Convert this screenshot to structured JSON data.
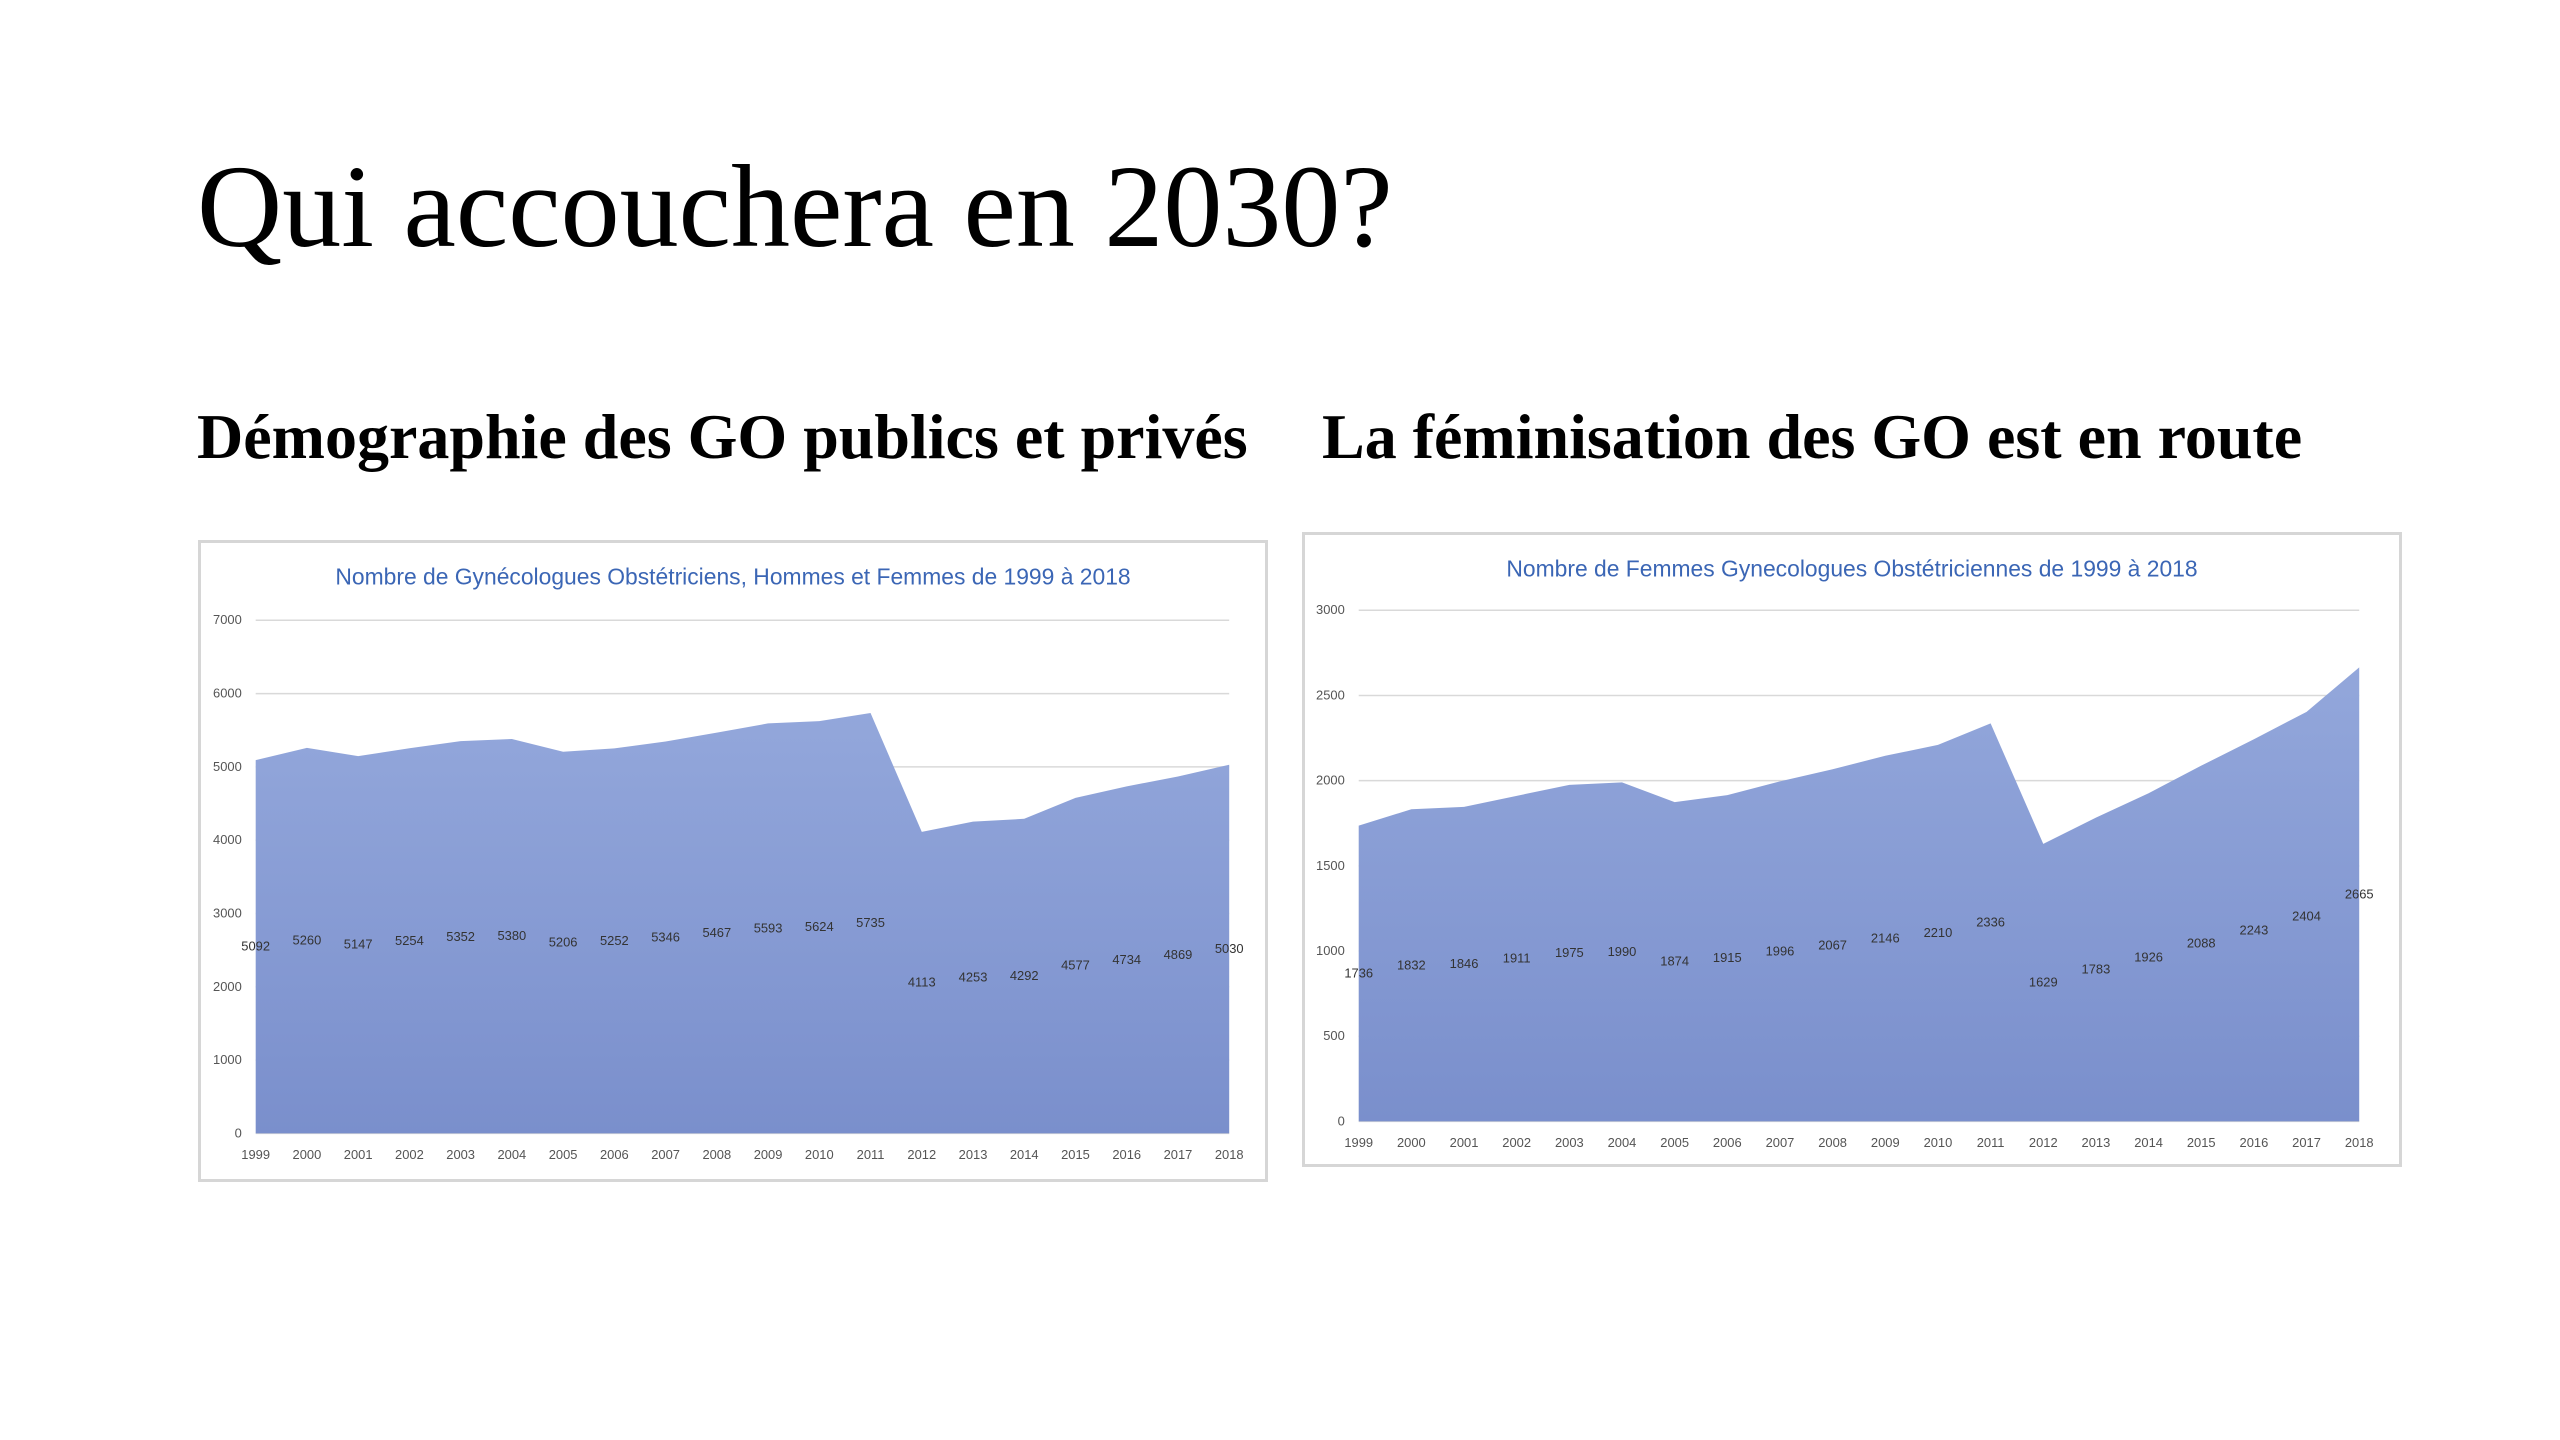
{
  "slide": {
    "title": "Qui accouchera en 2030?",
    "left_heading": "Démographie des GO publics et privés",
    "right_heading": "La féminisation des GO est en route"
  },
  "colors": {
    "area_top": "#93a7db",
    "area_bottom": "#7a8fcc",
    "chart_title": "#3b66b5",
    "gridline": "#d9d9d9",
    "frame": "#d6d6d6"
  },
  "chart_data": [
    {
      "type": "area",
      "title": "Nombre de Gynécologues Obstétriciens, Hommes et Femmes de 1999 à 2018",
      "xlabel": "",
      "ylabel": "",
      "categories": [
        "1999",
        "2000",
        "2001",
        "2002",
        "2003",
        "2004",
        "2005",
        "2006",
        "2007",
        "2008",
        "2009",
        "2010",
        "2011",
        "2012",
        "2013",
        "2014",
        "2015",
        "2016",
        "2017",
        "2018"
      ],
      "series": [
        {
          "values": [
            5092,
            5260,
            5147,
            5254,
            5352,
            5380,
            5206,
            5252,
            5346,
            5467,
            5593,
            5624,
            5735,
            4113,
            4253,
            4292,
            4577,
            4734,
            4869,
            5030
          ]
        }
      ],
      "data_labels": [
        "5092",
        "5260",
        "5147",
        "5254",
        "5352",
        "5380",
        "5206",
        "5252",
        "5346",
        "5467",
        "5593",
        "5624",
        "5735",
        "4113",
        "4253",
        "4292",
        "4577",
        "4734",
        "4869",
        "5030"
      ],
      "ylim": [
        0,
        7000
      ],
      "yticks": [
        0,
        1000,
        2000,
        3000,
        4000,
        5000,
        6000,
        7000
      ],
      "ytick_labels": [
        "0",
        "1000",
        "2000",
        "3000",
        "4000",
        "5000",
        "6000",
        "7000"
      ],
      "grid": true,
      "legend": "none"
    },
    {
      "type": "area",
      "title": "Nombre de Femmes Gynecologues Obstétriciennes de 1999 à 2018",
      "xlabel": "",
      "ylabel": "",
      "categories": [
        "1999",
        "2000",
        "2001",
        "2002",
        "2003",
        "2004",
        "2005",
        "2006",
        "2007",
        "2008",
        "2009",
        "2010",
        "2011",
        "2012",
        "2013",
        "2014",
        "2015",
        "2016",
        "2017",
        "2018"
      ],
      "series": [
        {
          "values": [
            1736,
            1832,
            1846,
            1911,
            1975,
            1990,
            1874,
            1915,
            1996,
            2067,
            2146,
            2210,
            2336,
            1629,
            1783,
            1926,
            2088,
            2243,
            2404,
            2665
          ]
        }
      ],
      "data_labels": [
        "1736",
        "1832",
        "1846",
        "1911",
        "1975",
        "1990",
        "1874",
        "1915",
        "1996",
        "2067",
        "2146",
        "2210",
        "2336",
        "1629",
        "1783",
        "1926",
        "2088",
        "2243",
        "2404",
        "2665"
      ],
      "ylim": [
        0,
        3000
      ],
      "yticks": [
        0,
        500,
        1000,
        1500,
        2000,
        2500,
        3000
      ],
      "ytick_labels": [
        "0",
        "500",
        "1000",
        "1500",
        "2000",
        "2500",
        "3000"
      ],
      "grid": true,
      "legend": "none"
    }
  ]
}
